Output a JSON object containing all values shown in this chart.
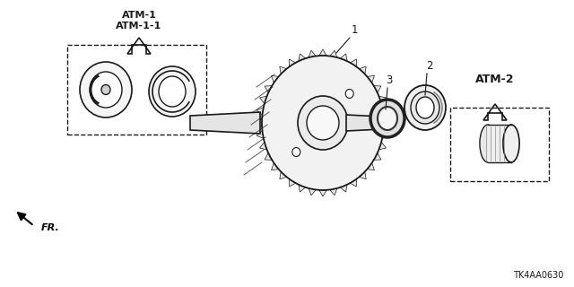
{
  "bg_color": "#ffffff",
  "label_ATM1": "ATM-1\nATM-1-1",
  "label_ATM2": "ATM-2",
  "label_FR": "FR.",
  "label_part_code": "TK4AA0630",
  "part_numbers": [
    "1",
    "2",
    "3"
  ],
  "line_color": "#1a1a1a"
}
